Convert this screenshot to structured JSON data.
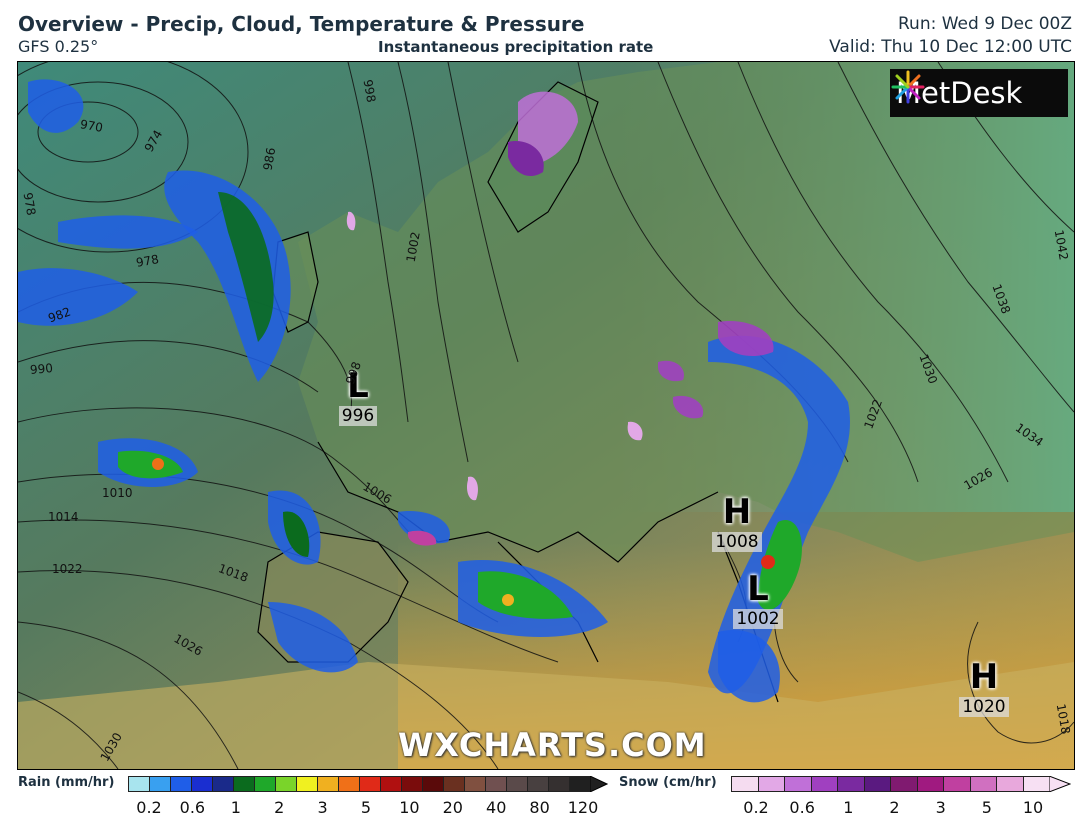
{
  "header": {
    "title": "Overview - Precip, Cloud, Temperature & Pressure",
    "model": "GFS 0.25°",
    "subtitle": "Instantaneous precipitation rate",
    "run": "Run: Wed 9 Dec 00Z",
    "valid": "Valid: Thu 10 Dec 12:00 UTC"
  },
  "logo": {
    "text": "MetDesk",
    "icon": "metdesk-burst-icon"
  },
  "watermark": "WXCHARTS.COM",
  "pressure_systems": [
    {
      "type": "L",
      "value": "996"
    },
    {
      "type": "H",
      "value": "1008"
    },
    {
      "type": "L",
      "value": "1002"
    },
    {
      "type": "H",
      "value": "1020"
    }
  ],
  "isobar_labels": [
    "970",
    "974",
    "978",
    "978",
    "982",
    "986",
    "990",
    "998",
    "998",
    "1002",
    "1006",
    "1010",
    "1014",
    "1018",
    "1022",
    "1026",
    "1030",
    "1018",
    "1022",
    "1026",
    "1030",
    "1034",
    "1038",
    "1042"
  ],
  "legend": {
    "rain": {
      "title": "Rain (mm/hr)",
      "ticks": [
        "0.2",
        "0.6",
        "1",
        "2",
        "3",
        "5",
        "10",
        "20",
        "40",
        "80",
        "120"
      ],
      "colors": [
        "#a8e4ee",
        "#39a0f0",
        "#1f5ee8",
        "#1a2ed0",
        "#1a2a8a",
        "#0b6b1e",
        "#1fa82a",
        "#7ad42a",
        "#f0f020",
        "#f0b020",
        "#f07018",
        "#e02a18",
        "#b01010",
        "#7a0c0c",
        "#5a0a0a",
        "#6a3020",
        "#805040",
        "#705050",
        "#5a4a4a",
        "#484040",
        "#353030",
        "#202020"
      ]
    },
    "snow": {
      "title": "Snow (cm/hr)",
      "ticks": [
        "0.2",
        "0.6",
        "1",
        "2",
        "3",
        "5",
        "10"
      ],
      "colors": [
        "#f5dcf0",
        "#e2a8e6",
        "#c070d8",
        "#a040c0",
        "#7a2aa0",
        "#5a1a80",
        "#801a70",
        "#a01a80",
        "#c040a0",
        "#d070c0",
        "#e8a8dc",
        "#f7e0f3"
      ]
    }
  }
}
